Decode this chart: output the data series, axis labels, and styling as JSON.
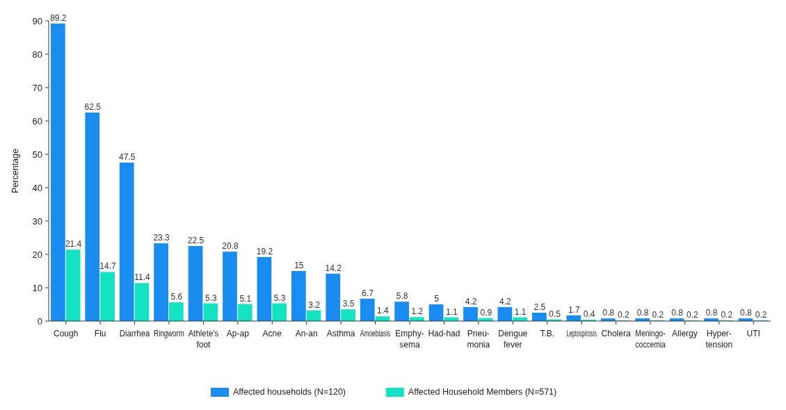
{
  "chart_data": {
    "type": "bar",
    "ylabel": "Percentage",
    "categories": [
      "Cough",
      "Flu",
      "Diarrhea",
      "Ringworm",
      "Athlete's foot",
      "Ap-ap",
      "Acne",
      "An-an",
      "Asthma",
      "Amoebiasis",
      "Emphy- sema",
      "Had-had",
      "Pneu- monia",
      "Dengue fever",
      "T.B.",
      "Leptospirosis",
      "Cholera",
      "Meningo- coccemia",
      "Allergy",
      "Hyper- tension",
      "UTI"
    ],
    "series": [
      {
        "name": "Affected households (N=120)",
        "color": "#1a8cf0",
        "values": [
          89.2,
          62.5,
          47.5,
          23.3,
          22.5,
          20.8,
          19.2,
          15,
          14.2,
          6.7,
          5.8,
          5,
          4.2,
          4.2,
          2.5,
          1.7,
          0.8,
          0.8,
          0.8,
          0.8,
          0.8
        ]
      },
      {
        "name": "Affected Household Members (N=571)",
        "color": "#14e3c3",
        "values": [
          21.4,
          14.7,
          11.4,
          5.6,
          5.3,
          5.1,
          5.3,
          3.2,
          3.5,
          1.4,
          1.2,
          1.1,
          0.9,
          1.1,
          0.5,
          0.4,
          0.2,
          0.2,
          0.2,
          0.2,
          0.2
        ]
      }
    ],
    "ylim": [
      0,
      90
    ],
    "yticks": [
      0,
      10,
      20,
      30,
      40,
      50,
      60,
      70,
      80,
      90
    ],
    "grid": false,
    "legend": "bottom",
    "data_labels": true
  }
}
